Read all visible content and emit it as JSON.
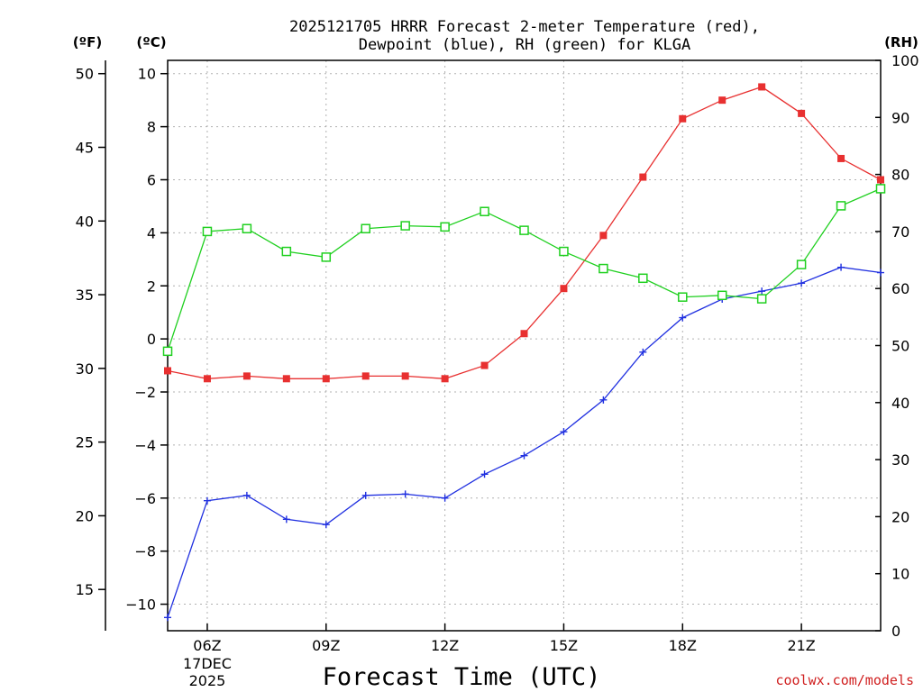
{
  "chart_data": {
    "type": "line",
    "title_line1": "2025121705 HRRR Forecast 2-meter Temperature (red),",
    "title_line2": "Dewpoint (blue), RH (green) for KLGA",
    "xlabel": "Forecast Time (UTC)",
    "credit": "coolwx.com/models",
    "left_unit_f": "(ºF)",
    "left_unit_c": "(ºC)",
    "right_unit": "(RH)",
    "x_hours": [
      5,
      6,
      7,
      8,
      9,
      10,
      11,
      12,
      13,
      14,
      15,
      16,
      17,
      18,
      19,
      20,
      21,
      22,
      23
    ],
    "x_ticks": [
      {
        "hour": 6,
        "label": "06Z",
        "sub1": "17DEC",
        "sub2": "2025"
      },
      {
        "hour": 9,
        "label": "09Z"
      },
      {
        "hour": 12,
        "label": "12Z"
      },
      {
        "hour": 15,
        "label": "15Z"
      },
      {
        "hour": 18,
        "label": "18Z"
      },
      {
        "hour": 21,
        "label": "21Z"
      }
    ],
    "xlim": [
      5,
      23
    ],
    "ylim_c": [
      -11,
      10.5
    ],
    "ylim_rh": [
      0,
      100
    ],
    "y_ticks_c": [
      -10,
      -8,
      -6,
      -4,
      -2,
      0,
      2,
      4,
      6,
      8,
      10
    ],
    "y_tick_labels_c": [
      "−10",
      "−8",
      "−6",
      "−4",
      "−2",
      "0",
      "2",
      "4",
      "6",
      "8",
      "10"
    ],
    "y_ticks_f": [
      15,
      20,
      25,
      30,
      35,
      40,
      45,
      50
    ],
    "y_ticks_rh": [
      0,
      10,
      20,
      30,
      40,
      50,
      60,
      70,
      80,
      90,
      100
    ],
    "grid": true,
    "series": [
      {
        "name": "Temperature",
        "color": "#e83030",
        "marker": "filled-square",
        "values": [
          -1.2,
          -1.5,
          -1.4,
          -1.5,
          -1.5,
          -1.4,
          -1.4,
          -1.5,
          -1.0,
          0.2,
          1.9,
          3.9,
          6.1,
          8.3,
          9.0,
          9.5,
          8.5,
          6.8,
          6.0
        ]
      },
      {
        "name": "Dewpoint",
        "color": "#2030e0",
        "marker": "plus",
        "values": [
          -10.5,
          -6.1,
          -5.9,
          -6.8,
          -7.0,
          -5.9,
          -5.85,
          -6.0,
          -5.1,
          -4.4,
          -3.5,
          -2.3,
          -0.5,
          0.8,
          1.5,
          1.8,
          2.1,
          2.7,
          2.5
        ]
      },
      {
        "name": "RH",
        "color": "#20d020",
        "marker": "open-square",
        "axis": "right",
        "values": [
          49,
          70,
          70.5,
          66.5,
          65.5,
          70.5,
          71,
          70.8,
          73.5,
          70.2,
          66.5,
          63.5,
          61.8,
          58.5,
          58.8,
          58.2,
          64.2,
          74.5,
          77.5
        ]
      }
    ]
  }
}
